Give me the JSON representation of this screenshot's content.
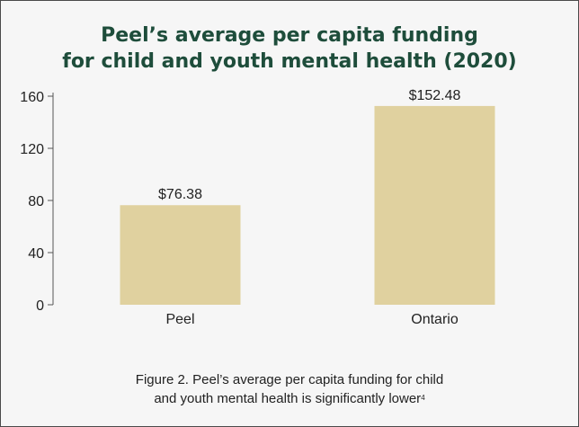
{
  "chart_data": {
    "type": "bar",
    "title_lines": [
      "Peel’s average per capita funding",
      "for child and youth mental health (2020)"
    ],
    "categories": [
      "Peel",
      "Ontario"
    ],
    "values": [
      76.38,
      152.48
    ],
    "data_labels": [
      "$76.38",
      "$152.48"
    ],
    "ylim": [
      0,
      160
    ],
    "yticks": [
      0,
      40,
      80,
      120,
      160
    ],
    "grid": false,
    "bar_color": "#e0d19f"
  },
  "caption": {
    "line1": "Figure 2. Peel’s average per capita funding for child",
    "line2": "and youth mental health is significantly lower",
    "superscript": "4"
  }
}
